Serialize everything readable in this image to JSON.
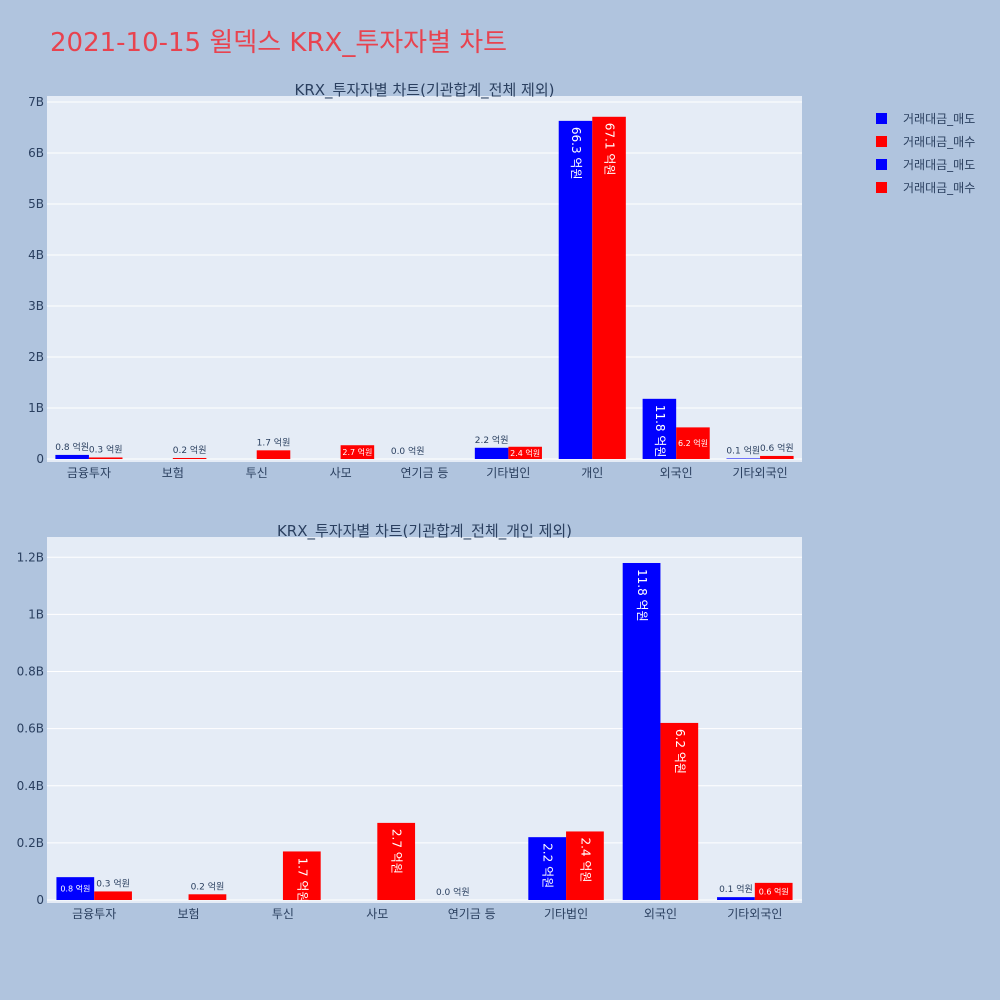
{
  "page": {
    "title": "2021-10-15 윌덱스 KRX_투자자별 차트"
  },
  "legend": {
    "items": [
      {
        "label": "거래대금_매도",
        "color": "#0000ff"
      },
      {
        "label": "거래대금_매수",
        "color": "#ff0000"
      },
      {
        "label": "거래대금_매도",
        "color": "#0000ff"
      },
      {
        "label": "거래대금_매수",
        "color": "#ff0000"
      }
    ]
  },
  "chart_data": [
    {
      "type": "bar",
      "title": "KRX_투자자별 차트(기관합계_전체 제외)",
      "categories": [
        "금융투자",
        "보험",
        "투신",
        "사모",
        "연기금 등",
        "기타법인",
        "개인",
        "외국인",
        "기타외국인"
      ],
      "ylim": [
        0,
        7000000000
      ],
      "yticks": [
        0,
        1000000000,
        2000000000,
        3000000000,
        4000000000,
        5000000000,
        6000000000,
        7000000000
      ],
      "ytick_labels": [
        "0",
        "1B",
        "2B",
        "3B",
        "4B",
        "5B",
        "6B",
        "7B"
      ],
      "series": [
        {
          "name": "거래대금_매도",
          "color": "#0000ff",
          "values": [
            80000000,
            0,
            0,
            0,
            0,
            220000000,
            6630000000,
            1180000000,
            10000000
          ],
          "labels": [
            "0.8 억원",
            "",
            "",
            "",
            "0.0 억원",
            "2.2 억원",
            "66.3 억원",
            "11.8 억원",
            "0.1 억원"
          ]
        },
        {
          "name": "거래대금_매수",
          "color": "#ff0000",
          "values": [
            30000000,
            20000000,
            170000000,
            270000000,
            0,
            240000000,
            6710000000,
            620000000,
            60000000
          ],
          "labels": [
            "0.3 억원",
            "0.2 억원",
            "1.7 억원",
            "2.7 억원",
            "",
            "2.4 억원",
            "67.1 억원",
            "6.2 억원",
            "0.6 억원"
          ]
        }
      ]
    },
    {
      "type": "bar",
      "title": "KRX_투자자별 차트(기관합계_전체_개인 제외)",
      "categories": [
        "금융투자",
        "보험",
        "투신",
        "사모",
        "연기금 등",
        "기타법인",
        "외국인",
        "기타외국인"
      ],
      "ylim": [
        0,
        1250000000
      ],
      "yticks": [
        0,
        200000000,
        400000000,
        600000000,
        800000000,
        1000000000,
        1200000000
      ],
      "ytick_labels": [
        "0",
        "0.2B",
        "0.4B",
        "0.6B",
        "0.8B",
        "1B",
        "1.2B"
      ],
      "series": [
        {
          "name": "거래대금_매도",
          "color": "#0000ff",
          "values": [
            80000000,
            0,
            0,
            0,
            0,
            220000000,
            1180000000,
            10000000
          ],
          "labels": [
            "0.8 억원",
            "",
            "",
            "",
            "0.0 억원",
            "2.2 억원",
            "11.8 억원",
            "0.1 억원"
          ]
        },
        {
          "name": "거래대금_매수",
          "color": "#ff0000",
          "values": [
            30000000,
            20000000,
            170000000,
            270000000,
            0,
            240000000,
            620000000,
            60000000
          ],
          "labels": [
            "0.3 억원",
            "0.2 억원",
            "1.7 억원",
            "2.7 억원",
            "",
            "2.4 억원",
            "6.2 억원",
            "0.6 억원"
          ]
        }
      ]
    }
  ]
}
